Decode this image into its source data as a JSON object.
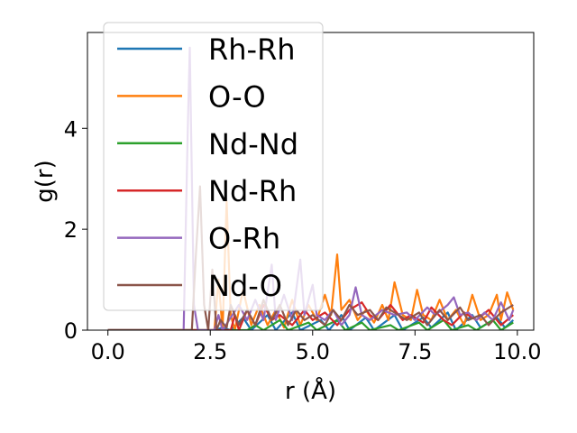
{
  "chart_data": {
    "type": "line",
    "title": "",
    "xlabel": "r (Å)",
    "ylabel": "g(r)",
    "xlim": [
      -0.5,
      10.4
    ],
    "ylim": [
      0,
      5.9
    ],
    "xticks": [
      {
        "value": 0.0,
        "label": "0.0"
      },
      {
        "value": 2.5,
        "label": "2.5"
      },
      {
        "value": 5.0,
        "label": "5.0"
      },
      {
        "value": 7.5,
        "label": "7.5"
      },
      {
        "value": 10.0,
        "label": "10.0"
      }
    ],
    "yticks": [
      {
        "value": 0,
        "label": "0"
      },
      {
        "value": 2,
        "label": "2"
      },
      {
        "value": 4,
        "label": "4"
      }
    ],
    "grid": false,
    "legend_position": "upper-left",
    "series": [
      {
        "name": "Rh-Rh",
        "color": "#1f77b4",
        "points": [
          [
            0,
            0
          ],
          [
            2.6,
            0
          ],
          [
            2.8,
            0.05
          ],
          [
            3.0,
            0
          ],
          [
            3.3,
            0.25
          ],
          [
            3.5,
            0
          ],
          [
            3.9,
            0.3
          ],
          [
            4.1,
            0
          ],
          [
            4.5,
            0.35
          ],
          [
            4.7,
            0
          ],
          [
            5.2,
            0.2
          ],
          [
            5.4,
            0
          ],
          [
            5.7,
            0.3
          ],
          [
            5.9,
            0
          ],
          [
            6.3,
            0.25
          ],
          [
            6.5,
            0
          ],
          [
            7.0,
            0.3
          ],
          [
            7.2,
            0
          ],
          [
            7.7,
            0.25
          ],
          [
            7.9,
            0.05
          ],
          [
            8.3,
            0.35
          ],
          [
            8.5,
            0
          ],
          [
            8.9,
            0.3
          ],
          [
            9.1,
            0.05
          ],
          [
            9.5,
            0.25
          ],
          [
            9.7,
            0.05
          ],
          [
            9.9,
            0.2
          ]
        ]
      },
      {
        "name": "O-O",
        "color": "#ff7f0e",
        "points": [
          [
            0,
            0
          ],
          [
            2.6,
            0
          ],
          [
            2.7,
            1.0
          ],
          [
            2.8,
            0
          ],
          [
            2.9,
            2.55
          ],
          [
            3.0,
            0.3
          ],
          [
            3.1,
            0
          ],
          [
            3.3,
            0.8
          ],
          [
            3.5,
            0.1
          ],
          [
            3.7,
            0.5
          ],
          [
            3.9,
            0.1
          ],
          [
            4.1,
            0.4
          ],
          [
            4.3,
            0.05
          ],
          [
            4.5,
            0.6
          ],
          [
            4.7,
            0.1
          ],
          [
            4.9,
            0.5
          ],
          [
            5.1,
            0.2
          ],
          [
            5.3,
            0.7
          ],
          [
            5.45,
            0.3
          ],
          [
            5.6,
            1.5
          ],
          [
            5.7,
            0.4
          ],
          [
            5.9,
            0.6
          ],
          [
            6.1,
            0.2
          ],
          [
            6.3,
            0.4
          ],
          [
            6.5,
            0.15
          ],
          [
            6.7,
            0.5
          ],
          [
            6.85,
            0.2
          ],
          [
            7.0,
            0.95
          ],
          [
            7.2,
            0.3
          ],
          [
            7.4,
            0.2
          ],
          [
            7.55,
            0.8
          ],
          [
            7.7,
            0.3
          ],
          [
            7.9,
            0.2
          ],
          [
            8.1,
            0.6
          ],
          [
            8.3,
            0.2
          ],
          [
            8.5,
            0.4
          ],
          [
            8.7,
            0.1
          ],
          [
            8.9,
            0.7
          ],
          [
            9.1,
            0.2
          ],
          [
            9.3,
            0.3
          ],
          [
            9.5,
            0.7
          ],
          [
            9.6,
            0.2
          ],
          [
            9.75,
            0.75
          ],
          [
            9.9,
            0.4
          ]
        ]
      },
      {
        "name": "Nd-Nd",
        "color": "#2ca02c",
        "points": [
          [
            0,
            0
          ],
          [
            3.4,
            0
          ],
          [
            3.6,
            0.1
          ],
          [
            3.8,
            0
          ],
          [
            4.2,
            0.2
          ],
          [
            4.4,
            0
          ],
          [
            4.9,
            0.15
          ],
          [
            5.1,
            0
          ],
          [
            5.6,
            0.2
          ],
          [
            5.8,
            0
          ],
          [
            6.2,
            0.15
          ],
          [
            6.4,
            0
          ],
          [
            6.9,
            0.1
          ],
          [
            7.1,
            0.0
          ],
          [
            7.6,
            0.15
          ],
          [
            7.8,
            0
          ],
          [
            8.2,
            0.2
          ],
          [
            8.4,
            0
          ],
          [
            8.8,
            0.1
          ],
          [
            9.0,
            0
          ],
          [
            9.4,
            0.2
          ],
          [
            9.6,
            0
          ],
          [
            9.9,
            0.15
          ]
        ]
      },
      {
        "name": "Nd-Rh",
        "color": "#d62728",
        "points": [
          [
            0,
            0
          ],
          [
            3.0,
            0
          ],
          [
            3.1,
            0.3
          ],
          [
            3.2,
            0
          ],
          [
            3.4,
            0.4
          ],
          [
            3.6,
            0.1
          ],
          [
            3.8,
            0.5
          ],
          [
            4.0,
            0.2
          ],
          [
            4.2,
            0.3
          ],
          [
            4.5,
            0.1
          ],
          [
            4.8,
            0.4
          ],
          [
            5.0,
            0.2
          ],
          [
            5.3,
            0.35
          ],
          [
            5.6,
            0.1
          ],
          [
            5.9,
            0.4
          ],
          [
            6.2,
            0.55
          ],
          [
            6.4,
            0.3
          ],
          [
            6.6,
            0.2
          ],
          [
            6.9,
            0.5
          ],
          [
            7.2,
            0.2
          ],
          [
            7.4,
            0.3
          ],
          [
            7.7,
            0.15
          ],
          [
            7.9,
            0.45
          ],
          [
            8.2,
            0.2
          ],
          [
            8.4,
            0.1
          ],
          [
            8.7,
            0.35
          ],
          [
            9.0,
            0.2
          ],
          [
            9.3,
            0.4
          ],
          [
            9.6,
            0.1
          ],
          [
            9.9,
            0.3
          ]
        ]
      },
      {
        "name": "O-Rh",
        "color": "#9467bd",
        "points": [
          [
            0,
            0
          ],
          [
            1.85,
            0
          ],
          [
            1.95,
            4.0
          ],
          [
            2.0,
            5.6
          ],
          [
            2.1,
            0.5
          ],
          [
            2.2,
            0
          ],
          [
            2.6,
            0
          ],
          [
            2.7,
            0.3
          ],
          [
            2.8,
            0
          ],
          [
            3.2,
            0.5
          ],
          [
            3.4,
            0.2
          ],
          [
            3.6,
            0.6
          ],
          [
            3.8,
            0.2
          ],
          [
            4.0,
            1.3
          ],
          [
            4.1,
            0.2
          ],
          [
            4.3,
            0.7
          ],
          [
            4.5,
            0.2
          ],
          [
            4.7,
            1.4
          ],
          [
            4.8,
            0.3
          ],
          [
            5.0,
            0.9
          ],
          [
            5.1,
            0.3
          ],
          [
            5.3,
            0.2
          ],
          [
            5.5,
            0.4
          ],
          [
            5.7,
            0.1
          ],
          [
            5.9,
            0.3
          ],
          [
            6.05,
            0.85
          ],
          [
            6.2,
            0.3
          ],
          [
            6.4,
            0.2
          ],
          [
            6.7,
            0.4
          ],
          [
            7.0,
            0.3
          ],
          [
            7.3,
            0.35
          ],
          [
            7.5,
            0.2
          ],
          [
            7.8,
            0.45
          ],
          [
            8.0,
            0.3
          ],
          [
            8.3,
            0.5
          ],
          [
            8.45,
            0.65
          ],
          [
            8.6,
            0.3
          ],
          [
            8.8,
            0.35
          ],
          [
            9.0,
            0.2
          ],
          [
            9.2,
            0.35
          ],
          [
            9.4,
            0.2
          ],
          [
            9.6,
            0.55
          ],
          [
            9.8,
            0.2
          ],
          [
            9.9,
            0.4
          ]
        ]
      },
      {
        "name": "Nd-O",
        "color": "#8c564b",
        "points": [
          [
            0,
            0
          ],
          [
            2.05,
            0
          ],
          [
            2.15,
            1.5
          ],
          [
            2.25,
            2.85
          ],
          [
            2.35,
            0.5
          ],
          [
            2.45,
            0
          ],
          [
            2.55,
            1.2
          ],
          [
            2.65,
            0
          ],
          [
            2.75,
            0.2
          ],
          [
            2.9,
            0.05
          ],
          [
            3.0,
            0.5
          ],
          [
            3.2,
            0.1
          ],
          [
            3.4,
            0.4
          ],
          [
            3.6,
            0.1
          ],
          [
            3.8,
            0.6
          ],
          [
            4.0,
            0.2
          ],
          [
            4.2,
            0.5
          ],
          [
            4.4,
            0.1
          ],
          [
            4.6,
            0.4
          ],
          [
            4.8,
            0.2
          ],
          [
            5.0,
            0.3
          ],
          [
            5.3,
            0.1
          ],
          [
            5.5,
            0.4
          ],
          [
            5.7,
            0.2
          ],
          [
            5.9,
            0.5
          ],
          [
            6.1,
            0.3
          ],
          [
            6.4,
            0.4
          ],
          [
            6.6,
            0.2
          ],
          [
            6.8,
            0.45
          ],
          [
            7.1,
            0.3
          ],
          [
            7.3,
            0.2
          ],
          [
            7.6,
            0.35
          ],
          [
            7.8,
            0.1
          ],
          [
            8.1,
            0.4
          ],
          [
            8.3,
            0.2
          ],
          [
            8.6,
            0.45
          ],
          [
            8.8,
            0.2
          ],
          [
            9.1,
            0.3
          ],
          [
            9.3,
            0.1
          ],
          [
            9.6,
            0.35
          ],
          [
            9.9,
            0.5
          ]
        ]
      }
    ]
  }
}
